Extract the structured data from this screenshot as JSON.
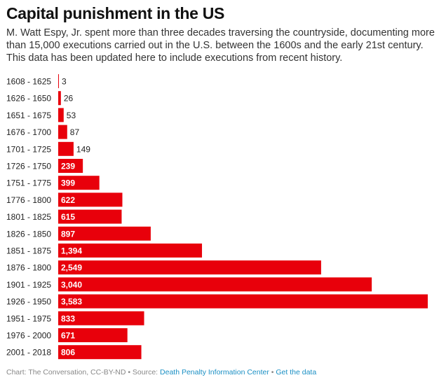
{
  "header": {
    "title": "Capital punishment in the US",
    "subtitle": "M. Watt Espy, Jr. spent more than three decades traversing the countryside, documenting more than 15,000 executions carried out in the U.S. between the 1600s and the early 21st century. This data has been updated here to include executions from recent history."
  },
  "footer": {
    "credit": "Chart: The Conversation, CC-BY-ND • Source: ",
    "source_link": "Death Penalty Information Center",
    "separator": " • ",
    "data_link": "Get the data"
  },
  "colors": {
    "bar": "#e8000b",
    "label_inside": "#ffffff",
    "label_outside": "#222222",
    "link": "#1a8fc4"
  },
  "chart_data": {
    "type": "bar",
    "orientation": "horizontal",
    "title": "Capital punishment in the US",
    "categories": [
      "1608 - 1625",
      "1626 - 1650",
      "1651 - 1675",
      "1676 - 1700",
      "1701 - 1725",
      "1726 - 1750",
      "1751 - 1775",
      "1776 - 1800",
      "1801 - 1825",
      "1826 - 1850",
      "1851 - 1875",
      "1876 - 1800",
      "1901 - 1925",
      "1926 - 1950",
      "1951 - 1975",
      "1976 - 2000",
      "2001 - 2018"
    ],
    "values": [
      3,
      26,
      53,
      87,
      149,
      239,
      399,
      622,
      615,
      897,
      1394,
      2549,
      3040,
      3583,
      833,
      671,
      806
    ],
    "value_labels": [
      "3",
      "26",
      "53",
      "87",
      "149",
      "239",
      "399",
      "622",
      "615",
      "897",
      "1,394",
      "2,549",
      "3,040",
      "3,583",
      "833",
      "671",
      "806"
    ],
    "xlim": [
      0,
      3583
    ],
    "grid": false,
    "legend": "none"
  }
}
